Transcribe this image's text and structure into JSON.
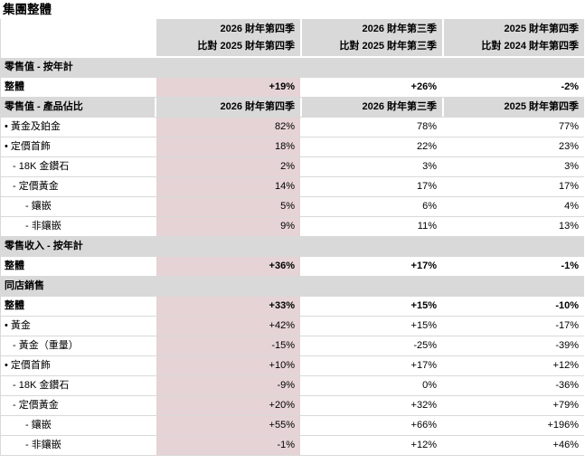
{
  "page": {
    "title": "集團整體"
  },
  "colors": {
    "section_bg": "#d9d9d9",
    "highlight_col_bg": "#e5d3d5",
    "row_border": "#d9d9d9",
    "text": "#000000"
  },
  "table": {
    "column_headers": [
      {
        "line1": "2026 財年第四季",
        "line2": "比對 2025 財年第四季"
      },
      {
        "line1": "2026 財年第三季",
        "line2": "比對 2025 財年第三季"
      },
      {
        "line1": "2025 財年第四季",
        "line2": "比對 2024 財年第四季"
      }
    ],
    "rows": [
      {
        "type": "section",
        "label": "零售值 - 按年計"
      },
      {
        "type": "data",
        "label": "整體",
        "indent": 0,
        "bold": true,
        "values": [
          "+19%",
          "+26%",
          "-2%"
        ]
      },
      {
        "type": "section_cols",
        "label": "零售值 - 產品佔比",
        "indent": 0,
        "values": [
          "2026 財年第四季",
          "2026 財年第三季",
          "2025 財年第四季"
        ]
      },
      {
        "type": "data",
        "label": "• 黃金及鉑金",
        "indent": 1,
        "bold": false,
        "values": [
          "82%",
          "78%",
          "77%"
        ]
      },
      {
        "type": "data",
        "label": "• 定價首飾",
        "indent": 1,
        "bold": false,
        "values": [
          "18%",
          "22%",
          "23%"
        ]
      },
      {
        "type": "data",
        "label": "- 18K 金鑽石",
        "indent": 2,
        "bold": false,
        "values": [
          "2%",
          "3%",
          "3%"
        ]
      },
      {
        "type": "data",
        "label": "- 定價黃金",
        "indent": 2,
        "bold": false,
        "values": [
          "14%",
          "17%",
          "17%"
        ]
      },
      {
        "type": "data",
        "label": "- 鑲嵌",
        "indent": 3,
        "bold": false,
        "values": [
          "5%",
          "6%",
          "4%"
        ]
      },
      {
        "type": "data",
        "label": "- 非鑲嵌",
        "indent": 3,
        "bold": false,
        "values": [
          "9%",
          "11%",
          "13%"
        ]
      },
      {
        "type": "section",
        "label": "零售收入 - 按年計"
      },
      {
        "type": "data",
        "label": "整體",
        "indent": 0,
        "bold": true,
        "values": [
          "+36%",
          "+17%",
          "-1%"
        ]
      },
      {
        "type": "section",
        "label": "同店銷售"
      },
      {
        "type": "data",
        "label": "整體",
        "indent": 0,
        "bold": true,
        "values": [
          "+33%",
          "+15%",
          "-10%"
        ]
      },
      {
        "type": "data",
        "label": "• 黃金",
        "indent": 1,
        "bold": false,
        "values": [
          "+42%",
          "+15%",
          "-17%"
        ]
      },
      {
        "type": "data",
        "label": "- 黃金（重量）",
        "indent": 2,
        "bold": false,
        "values": [
          "-15%",
          "-25%",
          "-39%"
        ]
      },
      {
        "type": "data",
        "label": "• 定價首飾",
        "indent": 1,
        "bold": false,
        "values": [
          "+10%",
          "+17%",
          "+12%"
        ]
      },
      {
        "type": "data",
        "label": "- 18K 金鑽石",
        "indent": 2,
        "bold": false,
        "values": [
          "-9%",
          "0%",
          "-36%"
        ]
      },
      {
        "type": "data",
        "label": "- 定價黃金",
        "indent": 2,
        "bold": false,
        "values": [
          "+20%",
          "+32%",
          "+79%"
        ]
      },
      {
        "type": "data",
        "label": "- 鑲嵌",
        "indent": 3,
        "bold": false,
        "values": [
          "+55%",
          "+66%",
          "+196%"
        ]
      },
      {
        "type": "data",
        "label": "- 非鑲嵌",
        "indent": 3,
        "bold": false,
        "values": [
          "-1%",
          "+12%",
          "+46%"
        ]
      }
    ]
  }
}
